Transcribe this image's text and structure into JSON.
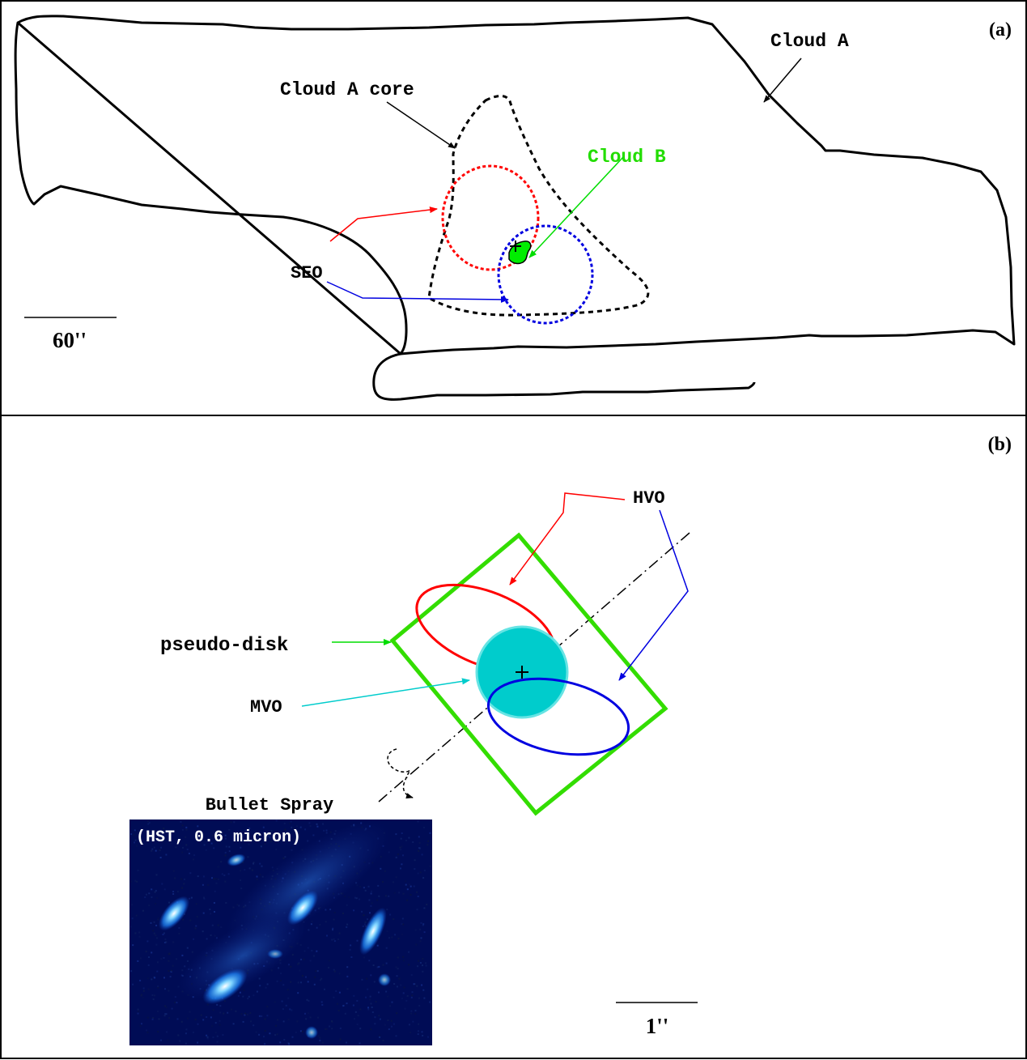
{
  "panel_a": {
    "tag": "(a)",
    "labels": {
      "cloud_a": "Cloud A",
      "cloud_a_core": "Cloud A core",
      "cloud_b": "Cloud B",
      "seo": "SEO"
    },
    "scale_bar": "60''"
  },
  "panel_b": {
    "tag": "(b)",
    "labels": {
      "hvo": "HVO",
      "pseudo_disk": "pseudo-disk",
      "mvo": "MVO",
      "bullet_spray": "Bullet Spray"
    },
    "inset_caption": "(HST, 0.6 micron)",
    "scale_bar": "1''"
  },
  "colors": {
    "red": "#ff0000",
    "blue": "#0000e0",
    "green": "#00dd00",
    "bright_green": "#33dd00",
    "cyan": "#00cccc",
    "cyan_fill": "#00cccc",
    "inset_bg": "#000c55",
    "knot": "#35a8ff"
  }
}
